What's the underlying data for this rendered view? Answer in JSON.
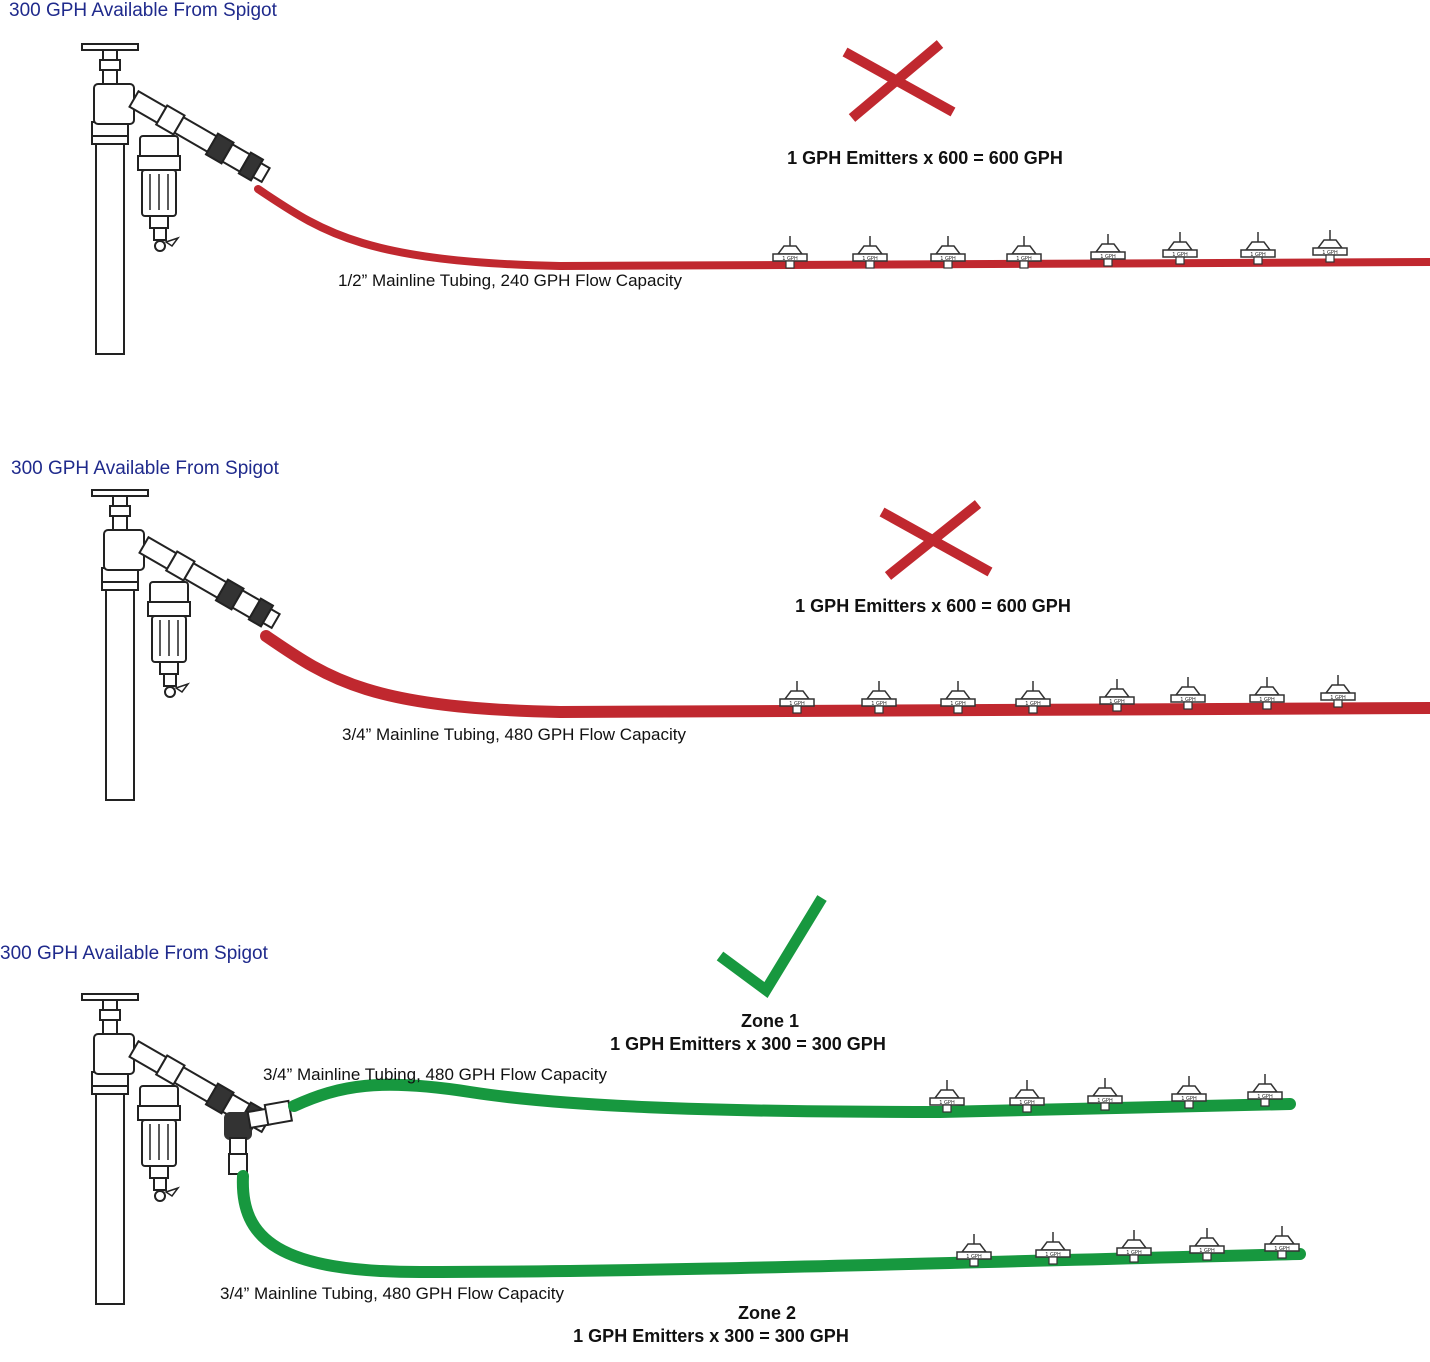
{
  "colors": {
    "fail": "#c0282f",
    "ok": "#17983f",
    "tube_fail": "#c0282f",
    "tube_ok": "#17983f",
    "label_blue": "#1f2a8c"
  },
  "panels": [
    {
      "status": "fail",
      "status_icon": "x-mark-icon",
      "available_label": "300 GPH Available From Spigot",
      "calc_label": "1 GPH Emitters x 600 = 600 GPH",
      "tubing_label": "1/2” Mainline Tubing, 240 GPH Flow Capacity",
      "emitter_label": "1 GPH",
      "emitter_count": 8
    },
    {
      "status": "fail",
      "status_icon": "x-mark-icon",
      "available_label": "300 GPH Available From Spigot",
      "calc_label": "1 GPH Emitters x 600 = 600 GPH",
      "tubing_label": "3/4” Mainline Tubing, 480 GPH Flow Capacity",
      "emitter_label": "1 GPH",
      "emitter_count": 8
    },
    {
      "status": "ok",
      "status_icon": "check-mark-icon",
      "available_label": "300 GPH Available From Spigot",
      "zones": [
        {
          "title": "Zone 1",
          "calc_label": "1 GPH Emitters x 300 = 300 GPH",
          "tubing_label": "3/4” Mainline Tubing, 480 GPH Flow Capacity",
          "emitter_label": "1 GPH",
          "emitter_count": 5
        },
        {
          "title": "Zone 2",
          "calc_label": "1 GPH Emitters x 300 = 300 GPH",
          "tubing_label": "3/4” Mainline Tubing, 480 GPH Flow Capacity",
          "emitter_label": "1 GPH",
          "emitter_count": 5
        }
      ]
    }
  ]
}
